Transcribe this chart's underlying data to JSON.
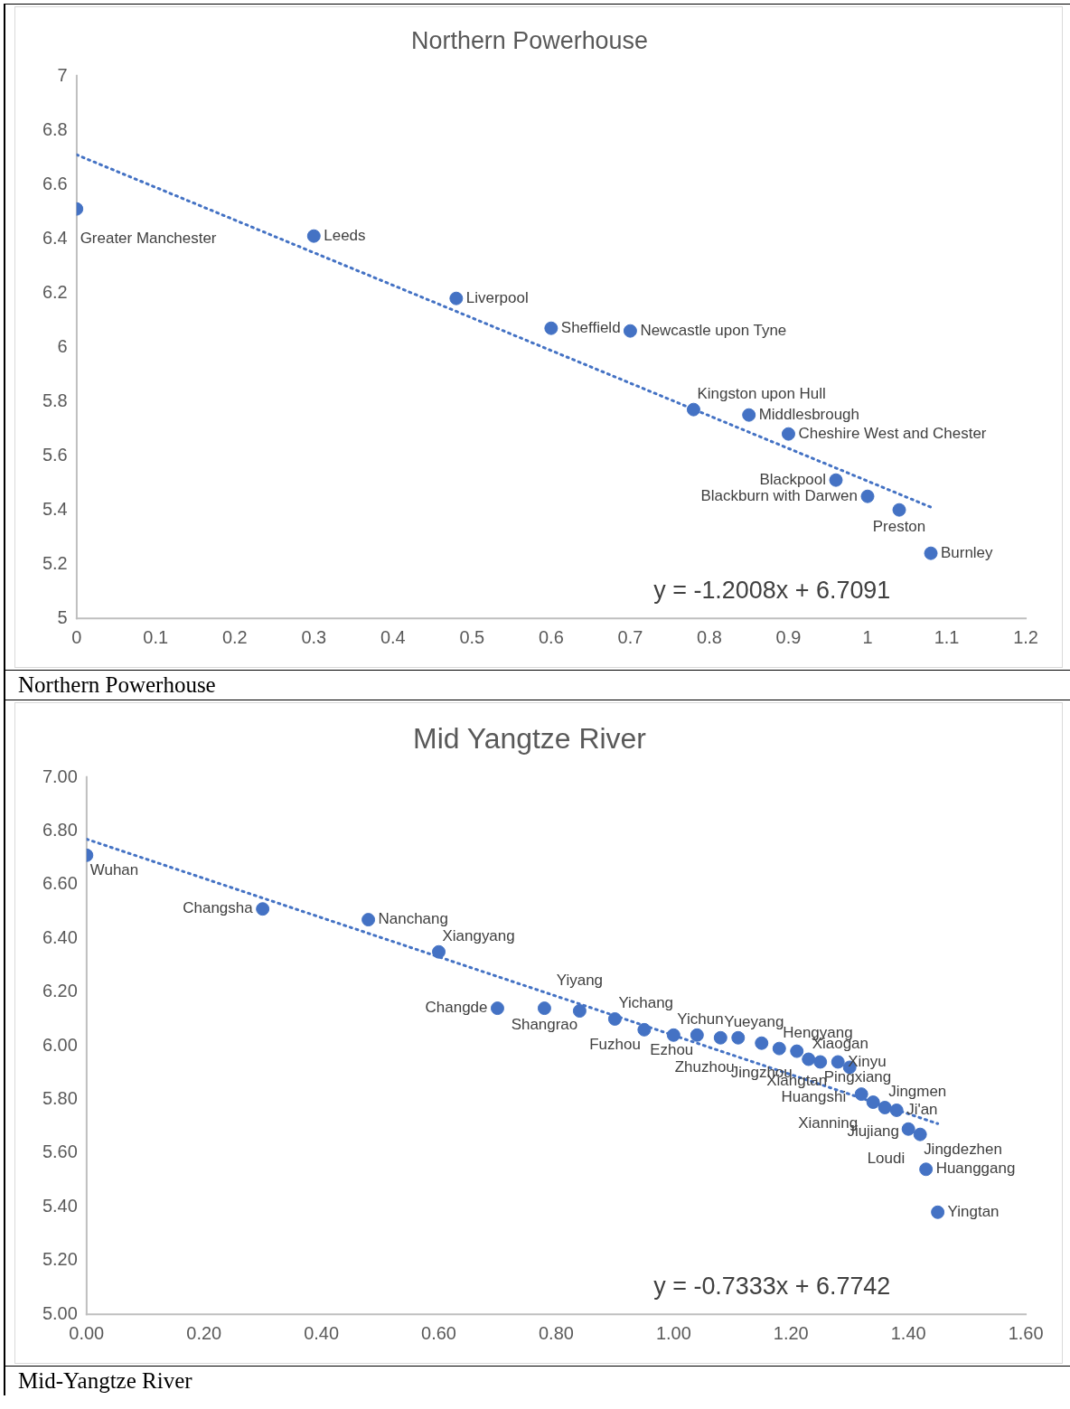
{
  "chart_data": [
    {
      "type": "scatter",
      "title": "Northern Powerhouse",
      "xlim": [
        0,
        1.2
      ],
      "ylim": [
        5,
        7
      ],
      "xticks": [
        0,
        0.1,
        0.2,
        0.3,
        0.4,
        0.5,
        0.6,
        0.7,
        0.8,
        0.9,
        1,
        1.1,
        1.2
      ],
      "yticks": [
        5,
        5.2,
        5.4,
        5.6,
        5.8,
        6,
        6.2,
        6.4,
        6.6,
        6.8,
        7
      ],
      "grid": false,
      "legend": false,
      "series": [
        {
          "type": "scatter",
          "color": "#4472c4",
          "marker": "circle",
          "x": [
            0,
            0.3,
            0.48,
            0.6,
            0.7,
            0.78,
            0.85,
            0.9,
            0.96,
            1.0,
            1.04,
            1.08
          ],
          "values": [
            6.51,
            6.41,
            6.18,
            6.07,
            6.06,
            5.77,
            5.75,
            5.68,
            5.51,
            5.45,
            5.4,
            5.24
          ],
          "value_labels": [
            "Greater Manchester",
            "Leeds",
            "Liverpool",
            "Sheffield",
            "Newcastle upon Tyne",
            "Kingston upon Hull",
            "Middlesbrough",
            "Cheshire West and Chester",
            "Blackpool",
            "Blackburn with Darwen",
            "Preston",
            "Burnley"
          ]
        },
        {
          "type": "line",
          "color": "#4472c4",
          "marker": "none",
          "line_style": "dotted",
          "x": [
            0,
            1.08
          ],
          "values": [
            6.71,
            5.41
          ]
        }
      ],
      "annotations": [
        "y = -1.2008x + 6.7091",
        "Northern Powerhouse"
      ]
    },
    {
      "type": "scatter",
      "title": "Mid Yangtze River",
      "xlim": [
        0,
        1.6
      ],
      "ylim": [
        5,
        7
      ],
      "xticks": [
        {
          "value": 0,
          "label": "0.00"
        },
        {
          "value": 0.2,
          "label": "0.20"
        },
        {
          "value": 0.4,
          "label": "0.40"
        },
        {
          "value": 0.6,
          "label": "0.60"
        },
        {
          "value": 0.8,
          "label": "0.80"
        },
        {
          "value": 1,
          "label": "1.00"
        },
        {
          "value": 1.2,
          "label": "1.20"
        },
        {
          "value": 1.4,
          "label": "1.40"
        },
        {
          "value": 1.6,
          "label": "1.60"
        }
      ],
      "yticks": [
        {
          "value": 5,
          "label": "5.00"
        },
        {
          "value": 5.2,
          "label": "5.20"
        },
        {
          "value": 5.4,
          "label": "5.40"
        },
        {
          "value": 5.6,
          "label": "5.60"
        },
        {
          "value": 5.8,
          "label": "5.80"
        },
        {
          "value": 6,
          "label": "6.00"
        },
        {
          "value": 6.2,
          "label": "6.20"
        },
        {
          "value": 6.4,
          "label": "6.40"
        },
        {
          "value": 6.6,
          "label": "6.60"
        },
        {
          "value": 6.8,
          "label": "6.80"
        },
        {
          "value": 7,
          "label": "7.00"
        }
      ],
      "grid": false,
      "legend": false,
      "series": [
        {
          "type": "scatter",
          "color": "#4472c4",
          "marker": "circle",
          "x": [
            0,
            0.3,
            0.48,
            0.6,
            0.7,
            0.78,
            0.84,
            0.9,
            0.95,
            1.0,
            1.04,
            1.08,
            1.11,
            1.15,
            1.18,
            1.21,
            1.23,
            1.25,
            1.28,
            1.3,
            1.32,
            1.34,
            1.36,
            1.38,
            1.4,
            1.42,
            1.43,
            1.45
          ],
          "values": [
            6.71,
            6.51,
            6.47,
            6.35,
            6.14,
            6.14,
            6.13,
            6.1,
            6.06,
            6.04,
            6.04,
            6.03,
            6.03,
            6.01,
            5.99,
            5.98,
            5.95,
            5.94,
            5.94,
            5.92,
            5.82,
            5.79,
            5.77,
            5.76,
            5.69,
            5.67,
            5.54,
            5.38
          ],
          "value_labels": [
            "Wuhan",
            "Changsha",
            "Nanchang",
            "Xiangyang",
            "Changde",
            "Shangrao",
            "Yiyang",
            "Yichang",
            "Fuzhou",
            "Yichun",
            "Ezhou",
            "Yueyang",
            "Zhuzhou",
            "Jingzhou",
            "Hengyang",
            "Xiangtan",
            "Xiaogan",
            "Pingxiang",
            "Xinyu",
            "Huangshi",
            "Xianning",
            "Jiujiang",
            "Jingmen",
            "Ji'an",
            "Loudi",
            "Jingdezhen",
            "Huanggang",
            "Yingtan"
          ]
        },
        {
          "type": "line",
          "color": "#4472c4",
          "marker": "none",
          "line_style": "dotted",
          "x": [
            0,
            1.45
          ],
          "values": [
            6.77,
            5.71
          ]
        }
      ],
      "annotations": [
        "y = -0.7333x + 6.7742",
        "Mid-Yangtze River"
      ]
    }
  ]
}
